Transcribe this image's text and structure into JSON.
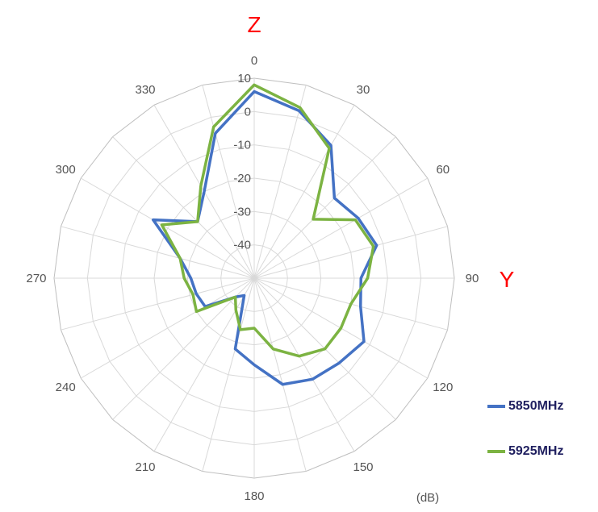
{
  "chart_data": {
    "type": "radar",
    "axis_names": {
      "top": "Z",
      "right": "Y"
    },
    "unit_label": "(dB)",
    "angle_tick_labels": [
      "0",
      "30",
      "60",
      "90",
      "120",
      "150",
      "180",
      "210",
      "240",
      "270",
      "300",
      "330"
    ],
    "radial_tick_labels": [
      "10",
      "0",
      "-10",
      "-20",
      "-30",
      "-40"
    ],
    "r_range": [
      -50,
      10
    ],
    "grid": true,
    "legend_position": "right-bottom",
    "angles": [
      0,
      15,
      30,
      45,
      60,
      75,
      90,
      105,
      120,
      135,
      150,
      165,
      180,
      195,
      210,
      225,
      240,
      255,
      270,
      285,
      300,
      315,
      330,
      345
    ],
    "series": [
      {
        "name": "5850MHz",
        "color": "#4472c4",
        "values": [
          6,
          2,
          -4,
          -16,
          -14,
          -12,
          -18,
          -17,
          -12,
          -14,
          -15,
          -17,
          -24,
          -28,
          -44,
          -42,
          -33,
          -32,
          -31,
          -27,
          -15,
          -26,
          -20,
          -5
        ]
      },
      {
        "name": "5925MHz",
        "color": "#7cb342",
        "values": [
          8,
          3,
          -5,
          -25,
          -15,
          -13,
          -16,
          -20,
          -20,
          -20,
          -23,
          -28,
          -35,
          -34,
          -39,
          -42,
          -30,
          -31,
          -29,
          -27,
          -18,
          -26,
          -18,
          -3
        ]
      }
    ]
  }
}
